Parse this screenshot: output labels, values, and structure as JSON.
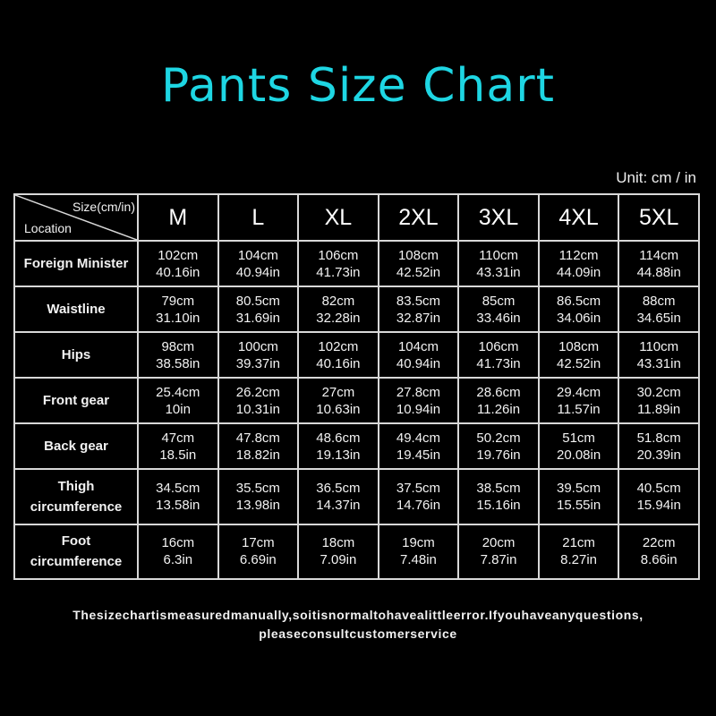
{
  "title": "Pants Size Chart",
  "unit_label": "Unit: cm / in",
  "colors": {
    "title": "#1ed6e3",
    "background": "#000000",
    "grid": "#d8d8d8"
  },
  "table": {
    "corner_top": "Size(cm/in)",
    "corner_bottom": "Location",
    "sizes": [
      "M",
      "L",
      "XL",
      "2XL",
      "3XL",
      "4XL",
      "5XL"
    ],
    "rows": [
      {
        "label": "Foreign Minister",
        "cm": [
          "102cm",
          "104cm",
          "106cm",
          "108cm",
          "110cm",
          "112cm",
          "114cm"
        ],
        "in": [
          "40.16in",
          "40.94in",
          "41.73in",
          "42.52in",
          "43.31in",
          "44.09in",
          "44.88in"
        ]
      },
      {
        "label": "Waistline",
        "cm": [
          "79cm",
          "80.5cm",
          "82cm",
          "83.5cm",
          "85cm",
          "86.5cm",
          "88cm"
        ],
        "in": [
          "31.10in",
          "31.69in",
          "32.28in",
          "32.87in",
          "33.46in",
          "34.06in",
          "34.65in"
        ]
      },
      {
        "label": "Hips",
        "cm": [
          "98cm",
          "100cm",
          "102cm",
          "104cm",
          "106cm",
          "108cm",
          "110cm"
        ],
        "in": [
          "38.58in",
          "39.37in",
          "40.16in",
          "40.94in",
          "41.73in",
          "42.52in",
          "43.31in"
        ]
      },
      {
        "label": "Front gear",
        "cm": [
          "25.4cm",
          "26.2cm",
          "27cm",
          "27.8cm",
          "28.6cm",
          "29.4cm",
          "30.2cm"
        ],
        "in": [
          "10in",
          "10.31in",
          "10.63in",
          "10.94in",
          "11.26in",
          "11.57in",
          "11.89in"
        ]
      },
      {
        "label": "Back gear",
        "cm": [
          "47cm",
          "47.8cm",
          "48.6cm",
          "49.4cm",
          "50.2cm",
          "51cm",
          "51.8cm"
        ],
        "in": [
          "18.5in",
          "18.82in",
          "19.13in",
          "19.45in",
          "19.76in",
          "20.08in",
          "20.39in"
        ]
      },
      {
        "label": "Thigh circumference",
        "cm": [
          "34.5cm",
          "35.5cm",
          "36.5cm",
          "37.5cm",
          "38.5cm",
          "39.5cm",
          "40.5cm"
        ],
        "in": [
          "13.58in",
          "13.98in",
          "14.37in",
          "14.76in",
          "15.16in",
          "15.55in",
          "15.94in"
        ]
      },
      {
        "label": "Foot circumference",
        "cm": [
          "16cm",
          "17cm",
          "18cm",
          "19cm",
          "20cm",
          "21cm",
          "22cm"
        ],
        "in": [
          "6.3in",
          "6.69in",
          "7.09in",
          "7.48in",
          "7.87in",
          "8.27in",
          "8.66in"
        ]
      }
    ]
  },
  "note_line1": "Thesizechartismeasuredmanually,soitisnormaltohavealittleerror.Ifyouhaveanyquestions,",
  "note_line2": "pleaseconsultcustomerservice"
}
